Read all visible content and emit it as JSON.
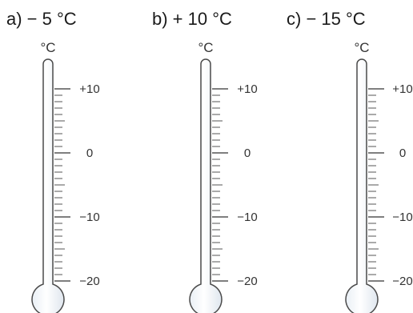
{
  "thermometers": [
    {
      "caption": "a)  − 5 °C",
      "unit": "°C",
      "labels": [
        "+10",
        "0",
        "−10",
        "−20"
      ]
    },
    {
      "caption": "b)  + 10 °C",
      "unit": "°C",
      "labels": [
        "+10",
        "0",
        "−10",
        "−20"
      ]
    },
    {
      "caption": "c)  − 15 °C",
      "unit": "°C",
      "labels": [
        "+10",
        "0",
        "−10",
        "−20"
      ]
    }
  ],
  "scale": {
    "max": 10,
    "min": -20,
    "labeled_values": [
      10,
      0,
      -10,
      -20
    ],
    "minor_step": 1
  },
  "colors": {
    "tube_fill": "#f2f6fa",
    "tube_stroke": "#4a4a4a",
    "tick": "#555555",
    "text": "#1a1a1a"
  }
}
